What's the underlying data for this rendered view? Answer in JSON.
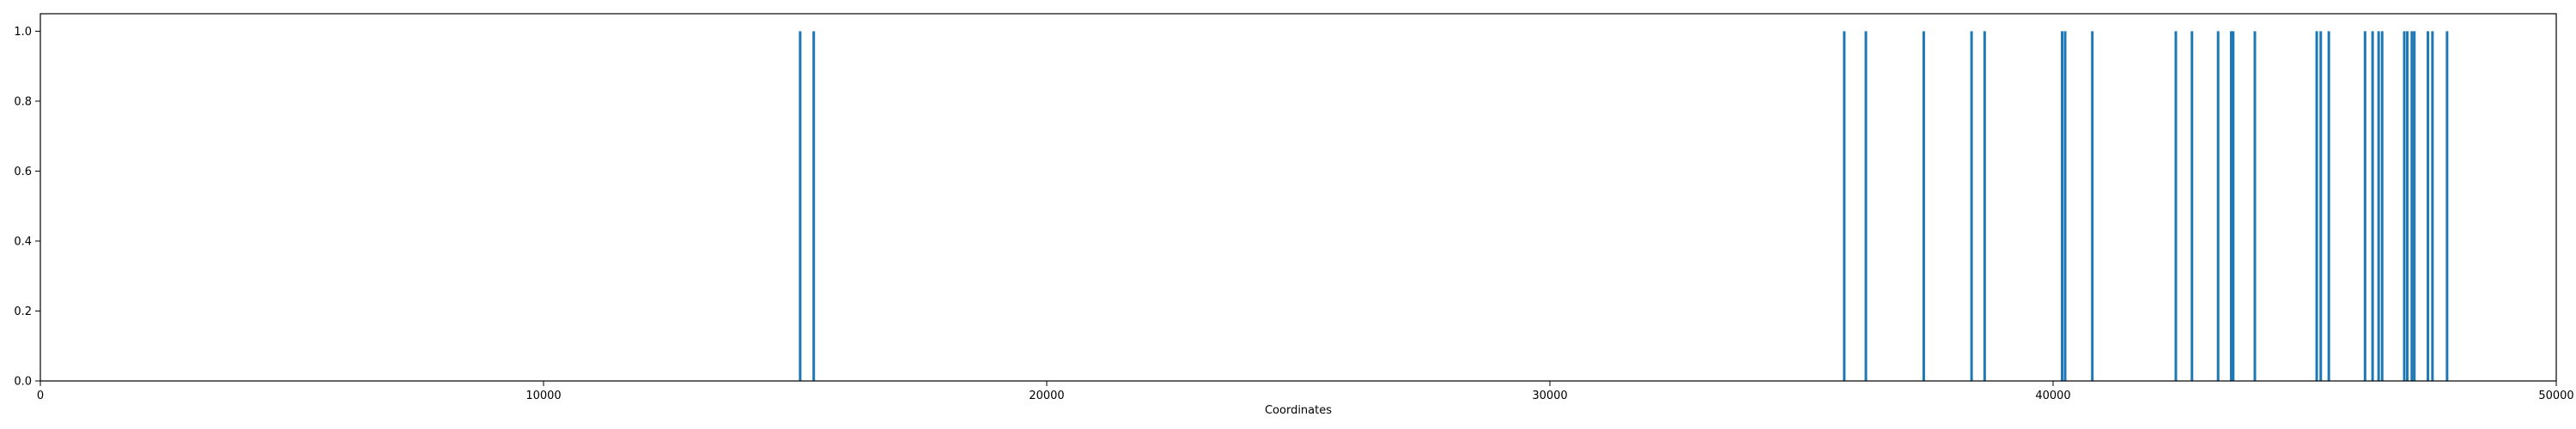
{
  "chart_data": {
    "type": "bar",
    "title": "",
    "xlabel": "Coordinates",
    "ylabel": "",
    "xlim": [
      0,
      50000
    ],
    "ylim": [
      0.0,
      1.05
    ],
    "x_ticks": [
      {
        "value": 0,
        "label": "0"
      },
      {
        "value": 10000,
        "label": "10000"
      },
      {
        "value": 20000,
        "label": "20000"
      },
      {
        "value": 30000,
        "label": "30000"
      },
      {
        "value": 40000,
        "label": "40000"
      },
      {
        "value": 50000,
        "label": "50000"
      }
    ],
    "y_ticks": [
      {
        "value": 0.0,
        "label": "0.0"
      },
      {
        "value": 0.2,
        "label": "0.2"
      },
      {
        "value": 0.4,
        "label": "0.4"
      },
      {
        "value": 0.6,
        "label": "0.6"
      },
      {
        "value": 0.8,
        "label": "0.8"
      },
      {
        "value": 1.0,
        "label": "1.0"
      }
    ],
    "grid": false,
    "series": [
      {
        "color": "#1f77b4",
        "x": [
          15100,
          15370,
          35850,
          36280,
          37430,
          38380,
          38640,
          40180,
          40240,
          40780,
          42440,
          42760,
          43280,
          43540,
          43580,
          44010,
          45240,
          45320,
          45480,
          46200,
          46350,
          46470,
          46540,
          46980,
          47040,
          47130,
          47180,
          47450,
          47540,
          47830
        ],
        "values": [
          1,
          1,
          1,
          1,
          1,
          1,
          1,
          1,
          1,
          1,
          1,
          1,
          1,
          1,
          1,
          1,
          1,
          1,
          1,
          1,
          1,
          1,
          1,
          1,
          1,
          1,
          1,
          1,
          1,
          1
        ]
      }
    ]
  }
}
